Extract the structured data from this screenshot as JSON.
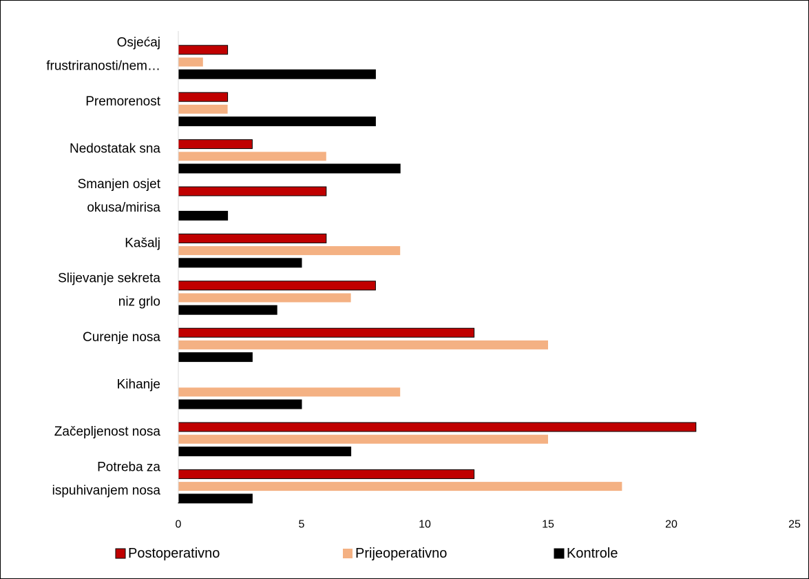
{
  "chart_data": {
    "type": "bar",
    "orientation": "horizontal",
    "categories": [
      [
        "Osjećaj",
        "frustriranosti/nem…"
      ],
      [
        "Premorenost"
      ],
      [
        "Nedostatak sna"
      ],
      [
        "Smanjen osjet",
        "okusa/mirisa"
      ],
      [
        "Kašalj"
      ],
      [
        "Slijevanje sekreta",
        "niz grlo"
      ],
      [
        "Curenje nosa"
      ],
      [
        "Kihanje"
      ],
      [
        "Začepljenost nosa"
      ],
      [
        "Potreba za",
        "ispuhivanjem nosa"
      ]
    ],
    "series": [
      {
        "name": "Postoperativno",
        "color": "#c00000",
        "values": [
          2,
          2,
          3,
          6,
          6,
          8,
          12,
          0,
          21,
          12
        ]
      },
      {
        "name": "Prijeoperativno",
        "color": "#f4b183",
        "values": [
          1,
          2,
          6,
          0,
          9,
          7,
          15,
          9,
          15,
          18
        ]
      },
      {
        "name": "Kontrole",
        "color": "#000000",
        "values": [
          8,
          8,
          9,
          2,
          5,
          4,
          3,
          5,
          7,
          3
        ]
      }
    ],
    "xlim": [
      0,
      25
    ],
    "xticks": [
      "0",
      "5",
      "10",
      "15",
      "20",
      "25"
    ],
    "xlabel": "",
    "ylabel": "",
    "title": "",
    "grid": false,
    "legend": "bottom"
  }
}
